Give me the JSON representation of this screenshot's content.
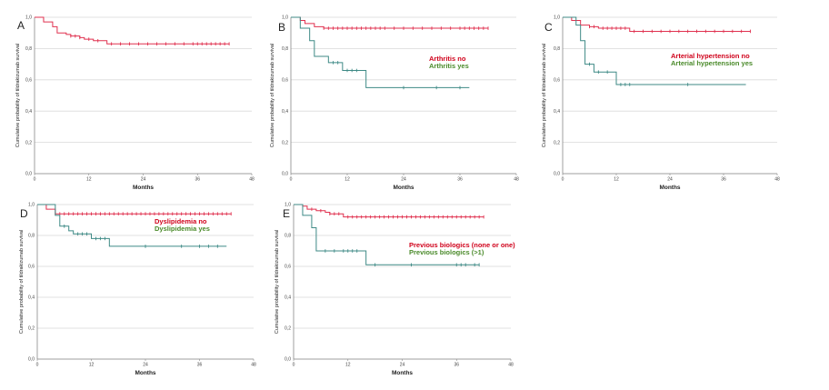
{
  "colors": {
    "no": "#e0314f",
    "yes": "#3f8a86",
    "legend_no": "#d0021b",
    "legend_yes": "#4a8a2a",
    "grid": "#d9d9d9",
    "axis": "#888888"
  },
  "chart_data": [
    {
      "panel": "A",
      "type": "line",
      "step": true,
      "xlabel": "Months",
      "ylabel": "Cumulative probability of tildrakizumab survival",
      "xlim": [
        0,
        48
      ],
      "ylim": [
        0.0,
        1.0
      ],
      "xticks": [
        "0",
        "12",
        "24",
        "36",
        "48"
      ],
      "yticks": [
        "0,0",
        "0,2",
        "0,4",
        "0,6",
        "0,8",
        "1,0"
      ],
      "legend": [],
      "series": [
        {
          "key": "no",
          "steps": [
            [
              0,
              1.0
            ],
            [
              2,
              0.97
            ],
            [
              4,
              0.94
            ],
            [
              5,
              0.9
            ],
            [
              7,
              0.89
            ],
            [
              8,
              0.88
            ],
            [
              10,
              0.87
            ],
            [
              11,
              0.86
            ],
            [
              13,
              0.85
            ],
            [
              16,
              0.83
            ]
          ],
          "end": 43,
          "censored": [
            8,
            9,
            10,
            12,
            14,
            17,
            19,
            21,
            23,
            25,
            27,
            29,
            31,
            33,
            35,
            36,
            37,
            38,
            39,
            40,
            41,
            42,
            43
          ]
        }
      ]
    },
    {
      "panel": "B",
      "type": "line",
      "step": true,
      "xlabel": "Months",
      "ylabel": "Cumulative probability of tildrakizumab survival",
      "xlim": [
        0,
        48
      ],
      "ylim": [
        0.0,
        1.0
      ],
      "xticks": [
        "0",
        "12",
        "24",
        "36",
        "48"
      ],
      "yticks": [
        "0,0",
        "0,2",
        "0,4",
        "0,6",
        "0,8",
        "1,0"
      ],
      "legend": [
        {
          "label": "Arthritis no",
          "key": "no"
        },
        {
          "label": "Arthritis yes",
          "key": "yes"
        }
      ],
      "series": [
        {
          "key": "no",
          "steps": [
            [
              0,
              1.0
            ],
            [
              2,
              0.98
            ],
            [
              3,
              0.96
            ],
            [
              5,
              0.94
            ],
            [
              7,
              0.93
            ]
          ],
          "end": 42,
          "censored": [
            7,
            8,
            9,
            10,
            11,
            12,
            13,
            14,
            15,
            16,
            17,
            18,
            19,
            20,
            22,
            24,
            26,
            28,
            30,
            32,
            34,
            36,
            37,
            38,
            39,
            40,
            41,
            42
          ]
        },
        {
          "key": "yes",
          "steps": [
            [
              0,
              1.0
            ],
            [
              2,
              0.93
            ],
            [
              4,
              0.85
            ],
            [
              5,
              0.75
            ],
            [
              8,
              0.71
            ],
            [
              11,
              0.66
            ],
            [
              16,
              0.55
            ]
          ],
          "end": 38,
          "censored": [
            9,
            10,
            12,
            13,
            14,
            24,
            31,
            36
          ]
        }
      ]
    },
    {
      "panel": "C",
      "type": "line",
      "step": true,
      "xlabel": "Months",
      "ylabel": "Cumulative probability of tildrakizumab survival",
      "xlim": [
        0,
        48
      ],
      "ylim": [
        0.0,
        1.0
      ],
      "xticks": [
        "0",
        "12",
        "24",
        "36",
        "48"
      ],
      "yticks": [
        "0,0",
        "0,2",
        "0,4",
        "0,6",
        "0,8",
        "1,0"
      ],
      "legend": [
        {
          "label": "Arterial hypertension no",
          "key": "no"
        },
        {
          "label": "Arterial hypertension yes",
          "key": "yes"
        }
      ],
      "series": [
        {
          "key": "no",
          "steps": [
            [
              0,
              1.0
            ],
            [
              2,
              0.98
            ],
            [
              4,
              0.95
            ],
            [
              6,
              0.94
            ],
            [
              8,
              0.93
            ],
            [
              15,
              0.91
            ]
          ],
          "end": 42,
          "censored": [
            6,
            7,
            9,
            10,
            11,
            12,
            13,
            14,
            16,
            18,
            20,
            22,
            24,
            26,
            28,
            30,
            32,
            34,
            36,
            38,
            40,
            42
          ]
        },
        {
          "key": "yes",
          "steps": [
            [
              0,
              1.0
            ],
            [
              3,
              0.95
            ],
            [
              4,
              0.85
            ],
            [
              5,
              0.7
            ],
            [
              7,
              0.65
            ],
            [
              12,
              0.57
            ]
          ],
          "end": 41,
          "censored": [
            6,
            8,
            10,
            13,
            14,
            15,
            28
          ]
        }
      ]
    },
    {
      "panel": "D",
      "type": "line",
      "step": true,
      "xlabel": "Months",
      "ylabel": "Cumulative probability of tildrakizumab survival",
      "xlim": [
        0,
        48
      ],
      "ylim": [
        0.0,
        1.0
      ],
      "xticks": [
        "0",
        "12",
        "24",
        "36",
        "48"
      ],
      "yticks": [
        "0,0",
        "0,2",
        "0,4",
        "0,6",
        "0,8",
        "1,0"
      ],
      "legend": [
        {
          "label": "Dyslipidemia no",
          "key": "no"
        },
        {
          "label": "Dyslipidemia yes",
          "key": "yes"
        }
      ],
      "series": [
        {
          "key": "no",
          "steps": [
            [
              0,
              1.0
            ],
            [
              2,
              0.97
            ],
            [
              4,
              0.94
            ]
          ],
          "end": 43,
          "censored": [
            4,
            5,
            6,
            7,
            8,
            9,
            10,
            11,
            12,
            13,
            14,
            15,
            16,
            17,
            18,
            19,
            20,
            21,
            22,
            23,
            24,
            25,
            26,
            27,
            28,
            29,
            30,
            31,
            32,
            33,
            34,
            35,
            36,
            37,
            38,
            39,
            40,
            41,
            42,
            43
          ]
        },
        {
          "key": "yes",
          "steps": [
            [
              0,
              1.0
            ],
            [
              4,
              0.93
            ],
            [
              5,
              0.86
            ],
            [
              7,
              0.83
            ],
            [
              8,
              0.81
            ],
            [
              12,
              0.78
            ],
            [
              16,
              0.73
            ]
          ],
          "end": 42,
          "censored": [
            6,
            9,
            10,
            11,
            13,
            14,
            15,
            24,
            32,
            36,
            38,
            40
          ]
        }
      ]
    },
    {
      "panel": "E",
      "type": "line",
      "step": true,
      "xlabel": "Months",
      "ylabel": "Cumulative probability of tildrakizumab survival",
      "xlim": [
        0,
        48
      ],
      "ylim": [
        0.0,
        1.0
      ],
      "xticks": [
        "0",
        "12",
        "24",
        "36",
        "48"
      ],
      "yticks": [
        "0,0",
        "0,2",
        "0,4",
        "0,6",
        "0,8",
        "1,0"
      ],
      "legend": [
        {
          "label": "Previous biologics (none or one)",
          "key": "no"
        },
        {
          "label": "Previous biologics (>1)",
          "key": "yes"
        }
      ],
      "series": [
        {
          "key": "no",
          "steps": [
            [
              0,
              1.0
            ],
            [
              2,
              0.99
            ],
            [
              3,
              0.97
            ],
            [
              5,
              0.96
            ],
            [
              7,
              0.95
            ],
            [
              8,
              0.94
            ],
            [
              11,
              0.92
            ]
          ],
          "end": 42,
          "censored": [
            4,
            6,
            8,
            9,
            10,
            12,
            13,
            14,
            15,
            16,
            17,
            18,
            19,
            20,
            21,
            22,
            23,
            24,
            25,
            26,
            27,
            28,
            29,
            30,
            31,
            32,
            33,
            34,
            35,
            36,
            37,
            38,
            39,
            40,
            41,
            42
          ]
        },
        {
          "key": "yes",
          "steps": [
            [
              0,
              1.0
            ],
            [
              2,
              0.93
            ],
            [
              4,
              0.85
            ],
            [
              5,
              0.7
            ],
            [
              16,
              0.61
            ]
          ],
          "end": 41,
          "censored": [
            7,
            9,
            11,
            12,
            13,
            14,
            18,
            26,
            36,
            37,
            38,
            40,
            41
          ]
        }
      ]
    }
  ]
}
